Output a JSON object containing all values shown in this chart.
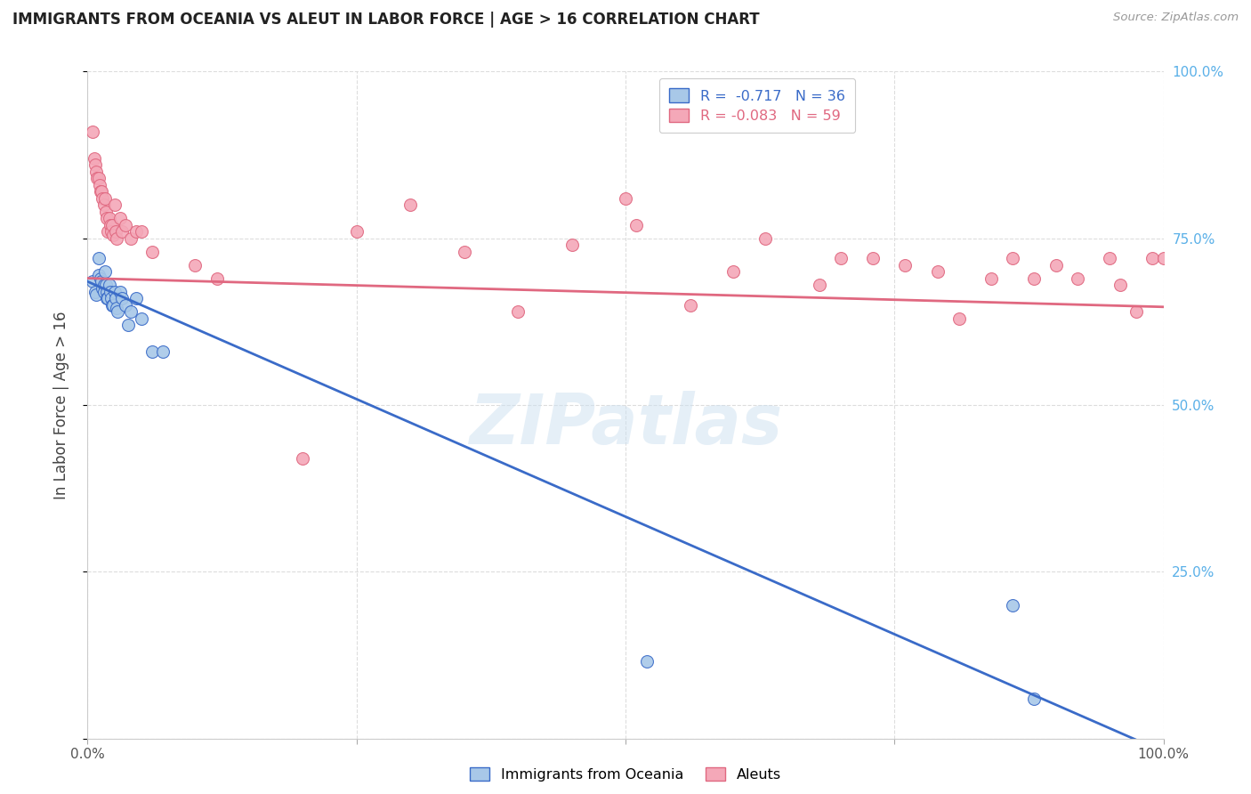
{
  "title": "IMMIGRANTS FROM OCEANIA VS ALEUT IN LABOR FORCE | AGE > 16 CORRELATION CHART",
  "source": "Source: ZipAtlas.com",
  "ylabel": "In Labor Force | Age > 16",
  "legend_label_blue": "Immigrants from Oceania",
  "legend_label_pink": "Aleuts",
  "legend_r_blue": "R =  -0.717",
  "legend_n_blue": "N = 36",
  "legend_r_pink": "R = -0.083",
  "legend_n_pink": "N = 59",
  "color_blue": "#a8c8e8",
  "color_pink": "#f4a8b8",
  "color_blue_line": "#3a6bc8",
  "color_pink_line": "#e06880",
  "color_right_axis": "#5ab0e8",
  "watermark_text": "ZIPatlas",
  "blue_points_x": [
    0.005,
    0.007,
    0.008,
    0.01,
    0.01,
    0.012,
    0.013,
    0.014,
    0.015,
    0.015,
    0.016,
    0.017,
    0.018,
    0.018,
    0.019,
    0.02,
    0.021,
    0.022,
    0.023,
    0.024,
    0.025,
    0.026,
    0.027,
    0.028,
    0.03,
    0.032,
    0.035,
    0.038,
    0.04,
    0.045,
    0.05,
    0.06,
    0.07,
    0.52,
    0.86,
    0.88
  ],
  "blue_points_y": [
    0.685,
    0.67,
    0.665,
    0.72,
    0.695,
    0.69,
    0.685,
    0.675,
    0.68,
    0.67,
    0.7,
    0.68,
    0.67,
    0.66,
    0.66,
    0.68,
    0.67,
    0.66,
    0.65,
    0.65,
    0.67,
    0.66,
    0.645,
    0.64,
    0.67,
    0.66,
    0.65,
    0.62,
    0.64,
    0.66,
    0.63,
    0.58,
    0.58,
    0.115,
    0.2,
    0.06
  ],
  "pink_points_x": [
    0.005,
    0.006,
    0.007,
    0.008,
    0.009,
    0.01,
    0.011,
    0.012,
    0.013,
    0.014,
    0.015,
    0.016,
    0.017,
    0.018,
    0.019,
    0.02,
    0.021,
    0.022,
    0.023,
    0.024,
    0.025,
    0.026,
    0.027,
    0.03,
    0.032,
    0.035,
    0.04,
    0.045,
    0.05,
    0.06,
    0.1,
    0.12,
    0.2,
    0.25,
    0.3,
    0.35,
    0.4,
    0.45,
    0.5,
    0.51,
    0.56,
    0.6,
    0.63,
    0.68,
    0.7,
    0.73,
    0.76,
    0.79,
    0.81,
    0.84,
    0.86,
    0.88,
    0.9,
    0.92,
    0.95,
    0.96,
    0.975,
    0.99,
    1.0
  ],
  "pink_points_y": [
    0.91,
    0.87,
    0.86,
    0.85,
    0.84,
    0.84,
    0.83,
    0.82,
    0.82,
    0.81,
    0.8,
    0.81,
    0.79,
    0.78,
    0.76,
    0.78,
    0.77,
    0.76,
    0.77,
    0.755,
    0.8,
    0.76,
    0.75,
    0.78,
    0.76,
    0.77,
    0.75,
    0.76,
    0.76,
    0.73,
    0.71,
    0.69,
    0.42,
    0.76,
    0.8,
    0.73,
    0.64,
    0.74,
    0.81,
    0.77,
    0.65,
    0.7,
    0.75,
    0.68,
    0.72,
    0.72,
    0.71,
    0.7,
    0.63,
    0.69,
    0.72,
    0.69,
    0.71,
    0.69,
    0.72,
    0.68,
    0.64,
    0.72,
    0.72
  ],
  "blue_line_x": [
    0.0,
    1.0
  ],
  "blue_line_y": [
    0.685,
    -0.02
  ],
  "pink_line_x": [
    0.0,
    1.0
  ],
  "pink_line_y": [
    0.69,
    0.647
  ],
  "xlim": [
    0.0,
    1.0
  ],
  "ylim": [
    0.0,
    1.0
  ],
  "background_color": "#ffffff",
  "grid_color": "#dddddd"
}
